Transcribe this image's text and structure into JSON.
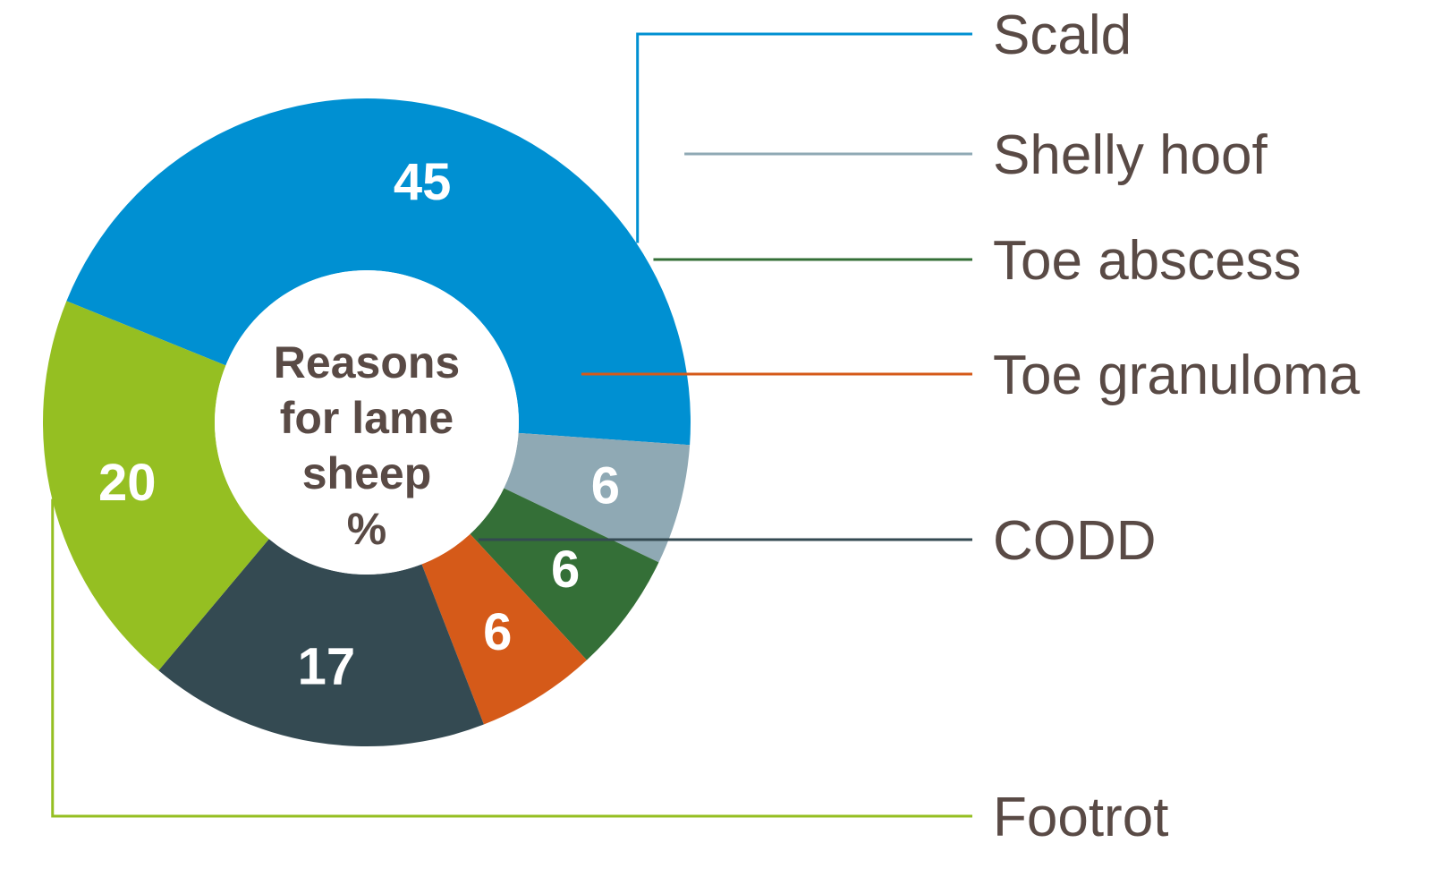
{
  "chart_data": {
    "type": "pie",
    "donut": true,
    "center_label_lines": [
      "Reasons",
      "for lame",
      "sheep",
      "%"
    ],
    "slices": [
      {
        "label": "Scald",
        "value": 45,
        "color": "#0090d2"
      },
      {
        "label": "Shelly hoof",
        "value": 6,
        "color": "#8fa9b4"
      },
      {
        "label": "Toe abscess",
        "value": 6,
        "color": "#346f37"
      },
      {
        "label": "Toe granuloma",
        "value": 6,
        "color": "#d55a19"
      },
      {
        "label": "CODD",
        "value": 17,
        "color": "#344a52"
      },
      {
        "label": "Footrot",
        "value": 20,
        "color": "#95bf22"
      }
    ],
    "legend": "right"
  }
}
